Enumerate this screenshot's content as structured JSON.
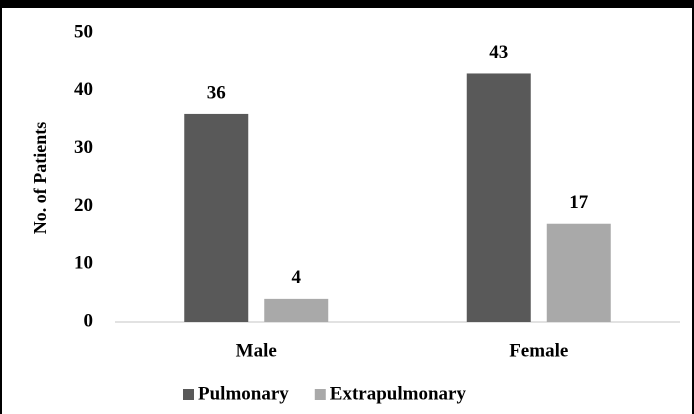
{
  "chart_data": {
    "type": "bar",
    "y_label": "No. of Patients",
    "categories": [
      "Male",
      "Female"
    ],
    "series": [
      {
        "name": "Pulmonary",
        "color": "#595959",
        "values": [
          36,
          43
        ]
      },
      {
        "name": "Extrapulmonary",
        "color": "#a9a9a9",
        "values": [
          4,
          17
        ]
      }
    ],
    "ylim": [
      0,
      50
    ],
    "yticks": [
      0,
      10,
      20,
      30,
      40,
      50
    ],
    "grid": false,
    "legend": "bottom"
  }
}
